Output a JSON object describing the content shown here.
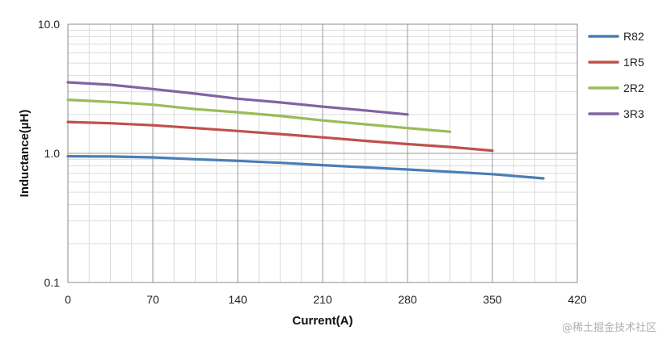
{
  "chart_data": {
    "type": "line",
    "title": "",
    "xlabel": "Current(A)",
    "ylabel": "Inductance(µH)",
    "xlim": [
      0,
      420
    ],
    "ylim": [
      0.1,
      10
    ],
    "y_scale": "log",
    "x_ticks": [
      "0",
      "70",
      "140",
      "210",
      "280",
      "350",
      "420"
    ],
    "y_ticks": [
      "0.1",
      "1.0",
      "10.0"
    ],
    "grid": true,
    "legend_position": "right",
    "series": [
      {
        "name": "R82",
        "color": "#4a7eb5",
        "x": [
          0,
          35,
          70,
          105,
          140,
          175,
          210,
          245,
          280,
          315,
          350,
          392
        ],
        "y": [
          0.95,
          0.945,
          0.93,
          0.9,
          0.875,
          0.845,
          0.81,
          0.78,
          0.75,
          0.72,
          0.69,
          0.64
        ]
      },
      {
        "name": "1R5",
        "color": "#c0504d",
        "x": [
          0,
          35,
          70,
          105,
          140,
          175,
          210,
          245,
          280,
          315,
          350
        ],
        "y": [
          1.75,
          1.71,
          1.65,
          1.57,
          1.49,
          1.41,
          1.33,
          1.25,
          1.18,
          1.12,
          1.05
        ]
      },
      {
        "name": "2R2",
        "color": "#9bbb59",
        "x": [
          0,
          35,
          70,
          105,
          140,
          175,
          210,
          245,
          280,
          315
        ],
        "y": [
          2.6,
          2.5,
          2.38,
          2.2,
          2.08,
          1.95,
          1.8,
          1.68,
          1.57,
          1.47
        ]
      },
      {
        "name": "3R3",
        "color": "#8064a2",
        "x": [
          0,
          35,
          70,
          105,
          140,
          175,
          210,
          245,
          280
        ],
        "y": [
          3.55,
          3.4,
          3.15,
          2.9,
          2.65,
          2.48,
          2.3,
          2.15,
          2.0
        ]
      }
    ]
  },
  "watermark": "@稀土掘金技术社区"
}
